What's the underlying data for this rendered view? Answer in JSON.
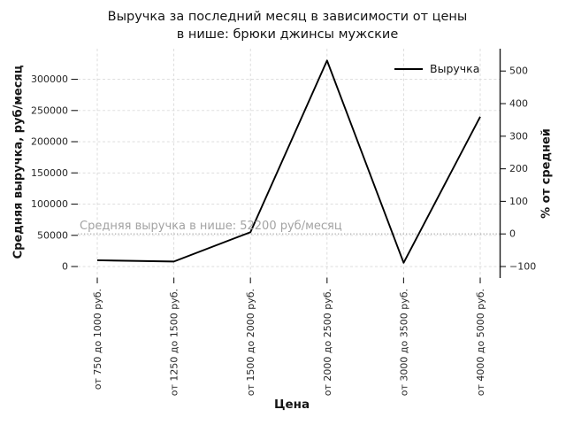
{
  "chart_data": {
    "type": "line",
    "title": "Выручка за последний месяц в зависимости от цены в нише: брюки джинсы мужские",
    "title_lines": [
      "Выручка за последний месяц в зависимости от цены",
      "в нише: брюки джинсы мужские"
    ],
    "xlabel": "Цена",
    "ylabel_left": "Средняя выручка, руб/месяц",
    "ylabel_right": "% от средней",
    "categories": [
      "от 750 до 1000 руб.",
      "от 1250 до 1500 руб.",
      "от 1500 до 2000 руб.",
      "от 2000 до 2500 руб.",
      "от 3000 до 3500 руб.",
      "от 4000 до 5000 руб."
    ],
    "series": [
      {
        "name": "Выручка",
        "color": "#000000",
        "values": [
          10000,
          8000,
          55000,
          330000,
          6000,
          240000
        ]
      }
    ],
    "yticks_left": [
      0,
      50000,
      100000,
      150000,
      200000,
      250000,
      300000
    ],
    "yticks_right": [
      -100,
      0,
      100,
      200,
      300,
      400,
      500
    ],
    "ylim_left": [
      -17000,
      349000
    ],
    "average_line": {
      "value": 52200,
      "label": "Средняя выручка в нише: 52200 руб/месяц",
      "style": "dotted",
      "color": "#b3b3b3"
    },
    "legend": {
      "position": "upper right",
      "entries": [
        {
          "label": "Выручка",
          "color": "#000000"
        }
      ]
    },
    "grid": true,
    "grid_color": "#d9d9d9",
    "background": "#ffffff"
  }
}
